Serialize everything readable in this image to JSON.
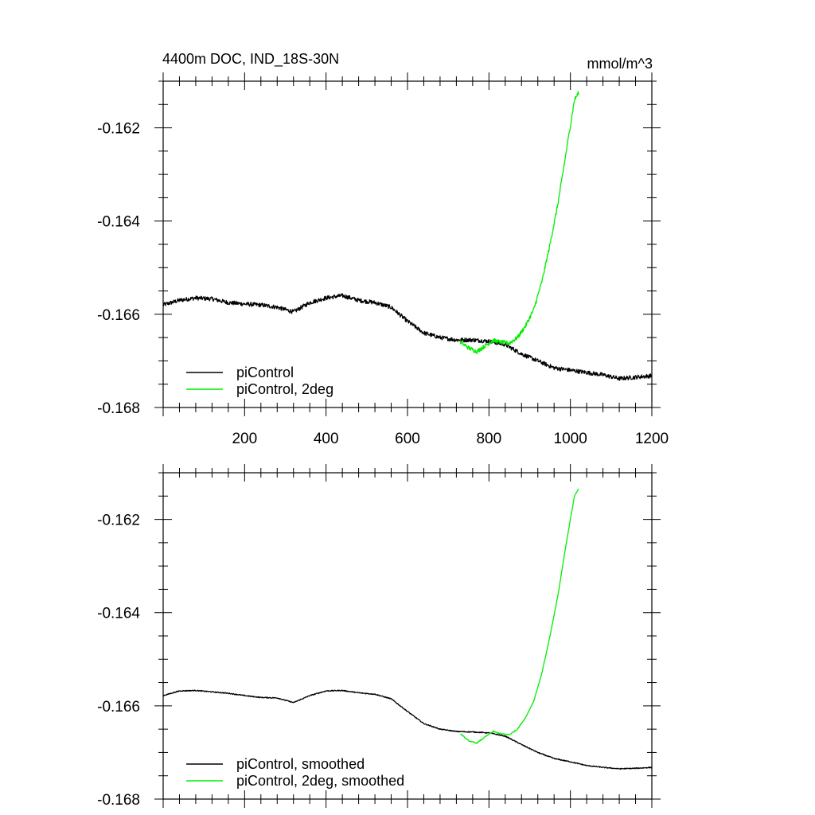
{
  "chart_data": [
    {
      "type": "line",
      "title": "4400m DOC, IND_18S-30N",
      "units_label": "mmol/m^3",
      "xlim": [
        0,
        1200
      ],
      "ylim": [
        -0.168,
        -0.161
      ],
      "x_ticks": [
        200,
        400,
        600,
        800,
        1000,
        1200
      ],
      "x_tick_labels": [
        "200",
        "400",
        "600",
        "800",
        "1000",
        "1200"
      ],
      "y_ticks": [
        -0.168,
        -0.166,
        -0.164,
        -0.162
      ],
      "y_tick_labels": [
        "-0.168",
        "-0.166",
        "-0.164",
        "-0.162"
      ],
      "grid": false,
      "legend_position": "bottom-left",
      "series": [
        {
          "name": "piControl",
          "color": "#000000",
          "noisy": true,
          "x": [
            0,
            40,
            80,
            120,
            160,
            200,
            240,
            280,
            320,
            360,
            400,
            440,
            480,
            520,
            560,
            600,
            640,
            680,
            720,
            760,
            800,
            840,
            880,
            920,
            960,
            1000,
            1040,
            1080,
            1120,
            1160,
            1200
          ],
          "y": [
            -0.1658,
            -0.1657,
            -0.16565,
            -0.16567,
            -0.16575,
            -0.16578,
            -0.1658,
            -0.16585,
            -0.16595,
            -0.16575,
            -0.16565,
            -0.1656,
            -0.1657,
            -0.16575,
            -0.16585,
            -0.16615,
            -0.1664,
            -0.1665,
            -0.16655,
            -0.16655,
            -0.16658,
            -0.16665,
            -0.16685,
            -0.167,
            -0.16715,
            -0.1672,
            -0.16725,
            -0.1673,
            -0.16738,
            -0.16735,
            -0.16732
          ]
        },
        {
          "name": "piControl, 2deg",
          "color": "#00ee00",
          "noisy": true,
          "x": [
            730,
            750,
            770,
            790,
            810,
            830,
            850,
            870,
            890,
            910,
            930,
            950,
            970,
            990,
            1010,
            1020
          ],
          "y": [
            -0.1666,
            -0.16672,
            -0.1668,
            -0.16668,
            -0.16656,
            -0.1666,
            -0.16662,
            -0.1665,
            -0.16625,
            -0.1659,
            -0.1653,
            -0.1645,
            -0.1636,
            -0.1625,
            -0.1614,
            -0.16125
          ]
        }
      ]
    },
    {
      "type": "line",
      "title": "",
      "xlim": [
        0,
        1200
      ],
      "ylim": [
        -0.168,
        -0.161
      ],
      "x_ticks": [
        200,
        400,
        600,
        800,
        1000,
        1200
      ],
      "y_ticks": [
        -0.168,
        -0.166,
        -0.164,
        -0.162
      ],
      "y_tick_labels": [
        "-0.168",
        "-0.166",
        "-0.164",
        "-0.162"
      ],
      "grid": false,
      "legend_position": "bottom-left",
      "series": [
        {
          "name": "piControl, smoothed",
          "color": "#000000",
          "noisy": false,
          "x": [
            0,
            40,
            80,
            120,
            160,
            200,
            240,
            280,
            320,
            360,
            400,
            440,
            480,
            520,
            560,
            600,
            640,
            680,
            720,
            760,
            800,
            840,
            880,
            920,
            960,
            1000,
            1040,
            1080,
            1120,
            1160,
            1200
          ],
          "y": [
            -0.16578,
            -0.16568,
            -0.16567,
            -0.1657,
            -0.16573,
            -0.16578,
            -0.16582,
            -0.16583,
            -0.16593,
            -0.16578,
            -0.16568,
            -0.16567,
            -0.16572,
            -0.16575,
            -0.16585,
            -0.16612,
            -0.16638,
            -0.1665,
            -0.16655,
            -0.16656,
            -0.16658,
            -0.16665,
            -0.16683,
            -0.167,
            -0.16713,
            -0.1672,
            -0.16728,
            -0.16732,
            -0.16735,
            -0.16734,
            -0.16732
          ]
        },
        {
          "name": "piControl, 2deg, smoothed",
          "color": "#00ee00",
          "noisy": false,
          "x": [
            730,
            750,
            770,
            790,
            810,
            830,
            850,
            870,
            890,
            910,
            930,
            950,
            970,
            990,
            1010,
            1020
          ],
          "y": [
            -0.1666,
            -0.16675,
            -0.1668,
            -0.16667,
            -0.16655,
            -0.1666,
            -0.16662,
            -0.1665,
            -0.16625,
            -0.1659,
            -0.1653,
            -0.1645,
            -0.1636,
            -0.1625,
            -0.1615,
            -0.16135
          ]
        }
      ]
    }
  ]
}
